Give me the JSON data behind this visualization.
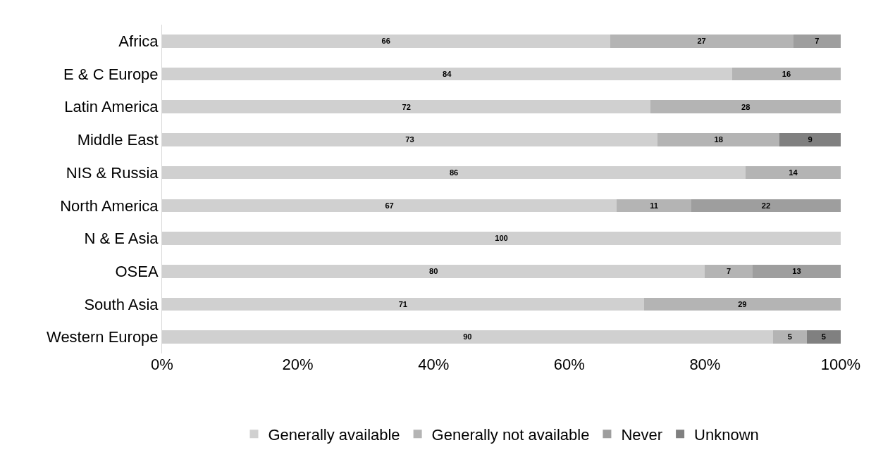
{
  "chart_data": {
    "type": "bar",
    "orientation": "horizontal",
    "stacked": true,
    "data_labels": true,
    "grid": false,
    "legend": "bottom",
    "categories": [
      "Africa",
      "E & C Europe",
      "Latin America",
      "Middle East",
      "NIS & Russia",
      "North America",
      "N & E Asia",
      "OSEA",
      "South Asia",
      "Western Europe"
    ],
    "series": [
      {
        "name": "Generally available",
        "color": "#d0d0d0",
        "values": [
          66,
          84,
          72,
          73,
          86,
          67,
          100,
          80,
          71,
          90
        ]
      },
      {
        "name": "Generally not available",
        "color": "#b4b4b4",
        "values": [
          27,
          16,
          28,
          18,
          14,
          11,
          null,
          7,
          29,
          5
        ]
      },
      {
        "name": "Never",
        "color": "#9e9e9e",
        "values": [
          7,
          null,
          null,
          null,
          null,
          22,
          null,
          13,
          null,
          null
        ]
      },
      {
        "name": "Unknown",
        "color": "#808080",
        "values": [
          null,
          null,
          null,
          9,
          null,
          null,
          null,
          null,
          null,
          5
        ]
      }
    ],
    "xlim": [
      0,
      100
    ],
    "xticks": [
      {
        "value": 0,
        "label": "0%"
      },
      {
        "value": 20,
        "label": "20%"
      },
      {
        "value": 40,
        "label": "40%"
      },
      {
        "value": 60,
        "label": "60%"
      },
      {
        "value": 80,
        "label": "80%"
      },
      {
        "value": 100,
        "label": "100%"
      }
    ]
  }
}
